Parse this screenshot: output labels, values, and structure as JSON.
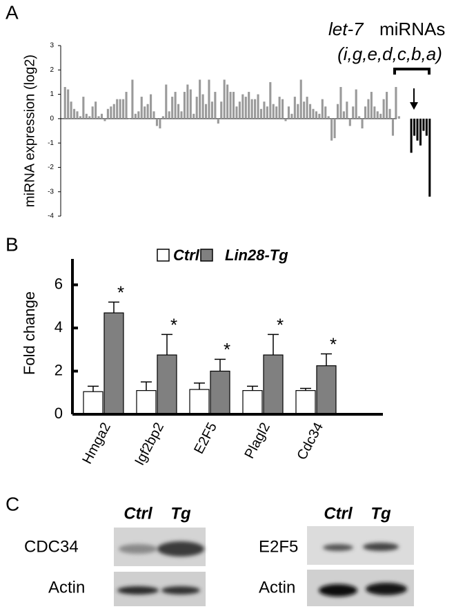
{
  "panel_labels": [
    "A",
    "B",
    "C"
  ],
  "chart_data": [
    {
      "type": "bar",
      "ylabel": "miRNA expression (log2)",
      "annotations": [
        "let-7",
        "miRNAs",
        "(i,g,e,d,c,b,a)"
      ],
      "categories": [
        null,
        null,
        null,
        null,
        null,
        null,
        null,
        null,
        null,
        null,
        null,
        null,
        null,
        null,
        null,
        null,
        null,
        null,
        null,
        null,
        null,
        null,
        null,
        null,
        null,
        null,
        null,
        null,
        null,
        null,
        null,
        null,
        null,
        null,
        null,
        null,
        null,
        null,
        null,
        null,
        null,
        null,
        null,
        null,
        null,
        null,
        null,
        null,
        null,
        null,
        null,
        null,
        null,
        null,
        null,
        null,
        null,
        null,
        null,
        null,
        null,
        null,
        null,
        null,
        null,
        null,
        null,
        null,
        null,
        null,
        null,
        null,
        null,
        null,
        null,
        null,
        null,
        null,
        null,
        null,
        null,
        null,
        null,
        null,
        null,
        null,
        null,
        null,
        null,
        null,
        null,
        null,
        null,
        null,
        null,
        null,
        null,
        null,
        null,
        null,
        null,
        null,
        null,
        null,
        null,
        null,
        null,
        null,
        null,
        null,
        null,
        null,
        null,
        null,
        null,
        null,
        null,
        null,
        null,
        null
      ],
      "series": [
        {
          "color": "#9a9a9a",
          "values": [
            1.3,
            1.2,
            0.7,
            0.4,
            0.3,
            0.1,
            0.9,
            0.2,
            0.1,
            0.5,
            0.7,
            0.1,
            0.2,
            -0.1,
            0.4,
            0.5,
            0.6,
            0.8,
            0.8,
            0.8,
            1.1,
            0,
            1.6,
            0.2,
            0.3,
            0.9,
            0.5,
            0.6,
            1.0,
            0.3,
            -0.3,
            -0.4,
            0.1,
            1.4,
            0.3,
            0.9,
            1.1,
            0.6,
            0.3,
            1.1,
            1.4,
            1.2,
            0.2,
            0.9,
            1.6,
            1.0,
            0.6,
            1.6,
            0.7,
            1.1,
            -0.2,
            0.7,
            1.6,
            1.4,
            1.1,
            1.1,
            0.5,
            0.7,
            1.0,
            0.9,
            1.1,
            0.8,
            0.8,
            1.0,
            0.4,
            0.7,
            0.5,
            1.5,
            0.6,
            0.5,
            0.9,
            0.8,
            -0.1,
            0.5,
            0.2,
            0.9,
            0.6,
            1.6,
            0.7,
            0.9,
            0.6,
            0.4,
            0.3,
            0.2,
            0.8,
            0.5,
            0.1,
            -0.9,
            -0.8,
            0.6,
            1.3,
            0.3,
            0.7,
            -0.3,
            0.5,
            1.2,
            0.1,
            -0.4,
            0.5,
            0.8,
            1.1,
            0.5,
            0.3,
            0.2,
            0.8,
            1.1,
            0.4,
            -0.7,
            1.3,
            0.1,
            null,
            null,
            null,
            null,
            null,
            null,
            null,
            null,
            null,
            null
          ]
        },
        {
          "color": "#000000",
          "values": [
            null,
            null,
            null,
            null,
            null,
            null,
            null,
            null,
            null,
            null,
            null,
            null,
            null,
            null,
            null,
            null,
            null,
            null,
            null,
            null,
            null,
            null,
            null,
            null,
            null,
            null,
            null,
            null,
            null,
            null,
            null,
            null,
            null,
            null,
            null,
            null,
            null,
            null,
            null,
            null,
            null,
            null,
            null,
            null,
            null,
            null,
            null,
            null,
            null,
            null,
            null,
            null,
            null,
            null,
            null,
            null,
            null,
            null,
            null,
            null,
            null,
            null,
            null,
            null,
            null,
            null,
            null,
            null,
            null,
            null,
            null,
            null,
            null,
            null,
            null,
            null,
            null,
            null,
            null,
            null,
            null,
            null,
            null,
            null,
            null,
            null,
            null,
            null,
            null,
            null,
            null,
            null,
            null,
            null,
            null,
            null,
            null,
            null,
            null,
            null,
            null,
            null,
            null,
            null,
            null,
            null,
            null,
            null,
            null,
            null,
            null,
            null,
            null,
            -1.4,
            -0.7,
            -0.9,
            -1.1,
            -0.5,
            -0.7,
            -3.2
          ]
        }
      ],
      "ylim": [
        -4,
        3
      ],
      "yticks": [
        -4,
        -3,
        -2,
        -1,
        0,
        1,
        2,
        3
      ]
    },
    {
      "type": "grouped_bar",
      "ylabel": "Fold change",
      "categories": [
        "Hmga2",
        "Igf2bp2",
        "E2F5",
        "Plagl2",
        "Cdc34"
      ],
      "series": [
        {
          "name": "Ctrl",
          "color": "#ffffff",
          "values": [
            1.05,
            1.1,
            1.15,
            1.1,
            1.1
          ],
          "errors": [
            0.25,
            0.4,
            0.3,
            0.2,
            0.1
          ]
        },
        {
          "name": "Lin28-Tg",
          "color": "#808080",
          "values": [
            4.7,
            2.75,
            2.0,
            2.75,
            2.25
          ],
          "errors": [
            0.5,
            0.95,
            0.55,
            0.95,
            0.55
          ]
        }
      ],
      "annotations": [
        "*",
        "*",
        "*",
        "*",
        "*"
      ],
      "ylim": [
        0,
        7.2
      ],
      "yticks": [
        0,
        2,
        4,
        6
      ]
    }
  ],
  "blots": [
    {
      "lanes": [
        "Ctrl",
        "Tg"
      ],
      "rows": [
        "CDC34",
        "Actin"
      ]
    },
    {
      "lanes": [
        "Ctrl",
        "Tg"
      ],
      "rows": [
        "E2F5",
        "Actin"
      ]
    }
  ]
}
